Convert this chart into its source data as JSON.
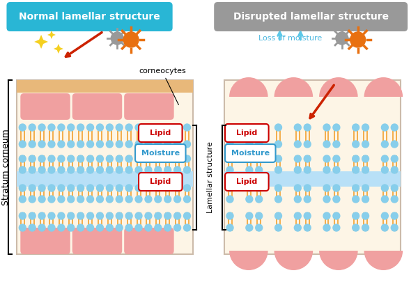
{
  "title_left": "Normal lamellar structure",
  "title_right": "Disrupted lamellar structure",
  "title_left_color": "#29b6d5",
  "title_right_color": "#999999",
  "title_text_color": "white",
  "bg_color": "white",
  "panel_bg": "#fdf5e6",
  "stratum_label": "Stratum corneum",
  "lamellar_label": "Lamellar structure",
  "corneocytes_label": "corneocytes",
  "loss_moisture_label": "Loss of moisture",
  "lipid_label": "Lipid",
  "moisture_label": "Moisture",
  "cell_color": "#f0a0a0",
  "cell_top_color": "#e8b090",
  "lipid_bilayer_color": "#87ceeb",
  "lipid_tail_color": "#f0a030",
  "moisture_band_color": "#b8e0f7",
  "lipid_box_border": "#cc0000",
  "lipid_box_text": "#cc0000",
  "moisture_box_border": "#3399cc",
  "moisture_box_text": "#3399cc",
  "arrow_red_color": "#cc2200",
  "arrow_blue_color": "#5bc8e8",
  "sparkle_color": "#f5d020",
  "germ_color": "#999999",
  "sun_color": "#e87010"
}
